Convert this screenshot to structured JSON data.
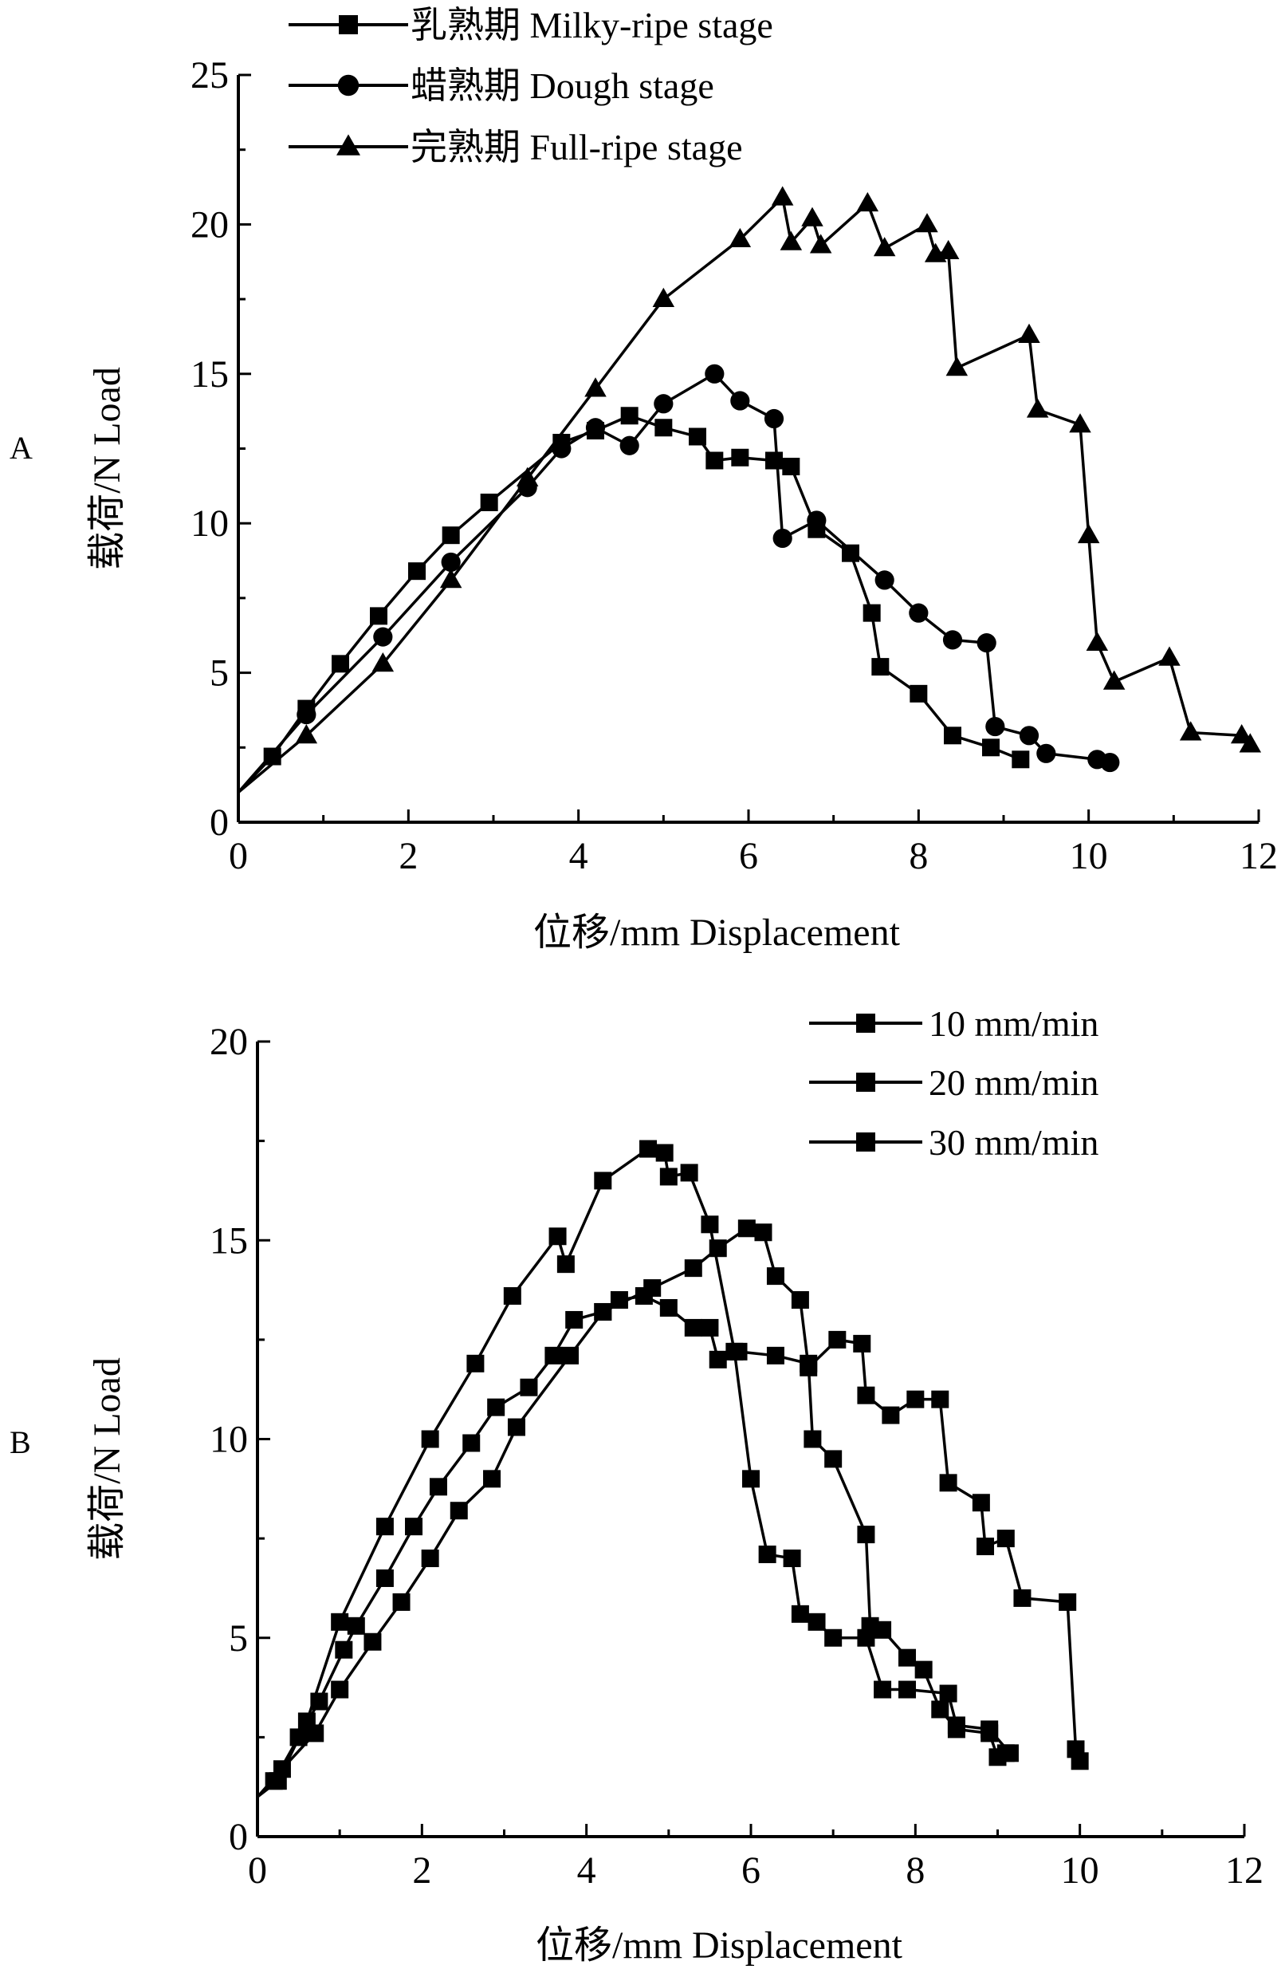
{
  "chart_data": [
    {
      "panel_label": "A",
      "type": "line",
      "xlabel": "位移/mm Displacement",
      "ylabel": "载荷/N Load",
      "xlim": [
        0,
        12
      ],
      "ylim": [
        0,
        25
      ],
      "xticks": [
        0,
        2,
        4,
        6,
        8,
        10,
        12
      ],
      "yticks": [
        0,
        5,
        10,
        15,
        20,
        25
      ],
      "grid": false,
      "legend_position": "top-left",
      "color": "#000000",
      "series": [
        {
          "name": "乳熟期 Milky-ripe stage",
          "marker": "square",
          "points": [
            [
              0,
              1
            ],
            [
              0.4,
              2.2
            ],
            [
              0.8,
              3.8
            ],
            [
              1.2,
              5.3
            ],
            [
              1.65,
              6.9
            ],
            [
              2.1,
              8.4
            ],
            [
              2.5,
              9.6
            ],
            [
              2.95,
              10.7
            ],
            [
              3.8,
              12.7
            ],
            [
              4.2,
              13.1
            ],
            [
              4.6,
              13.6
            ],
            [
              5.0,
              13.2
            ],
            [
              5.4,
              12.9
            ],
            [
              5.6,
              12.1
            ],
            [
              5.9,
              12.2
            ],
            [
              6.3,
              12.1
            ],
            [
              6.5,
              11.9
            ],
            [
              6.8,
              9.8
            ],
            [
              7.2,
              9.0
            ],
            [
              7.45,
              7.0
            ],
            [
              7.55,
              5.2
            ],
            [
              8.0,
              4.3
            ],
            [
              8.4,
              2.9
            ],
            [
              8.85,
              2.5
            ],
            [
              9.2,
              2.1
            ]
          ]
        },
        {
          "name": "蜡熟期 Dough stage",
          "marker": "circle",
          "points": [
            [
              0,
              1
            ],
            [
              0.8,
              3.6
            ],
            [
              1.7,
              6.2
            ],
            [
              2.5,
              8.7
            ],
            [
              3.4,
              11.2
            ],
            [
              3.8,
              12.5
            ],
            [
              4.2,
              13.2
            ],
            [
              4.6,
              12.6
            ],
            [
              5.0,
              14.0
            ],
            [
              5.6,
              15.0
            ],
            [
              5.9,
              14.1
            ],
            [
              6.3,
              13.5
            ],
            [
              6.4,
              9.5
            ],
            [
              6.8,
              10.1
            ],
            [
              7.6,
              8.1
            ],
            [
              8.0,
              7.0
            ],
            [
              8.4,
              6.1
            ],
            [
              8.8,
              6.0
            ],
            [
              8.9,
              3.2
            ],
            [
              9.3,
              2.9
            ],
            [
              9.5,
              2.3
            ],
            [
              10.1,
              2.1
            ],
            [
              10.25,
              2.0
            ]
          ]
        },
        {
          "name": "完熟期 Full-ripe stage",
          "marker": "triangle",
          "points": [
            [
              0,
              1
            ],
            [
              0.8,
              2.9
            ],
            [
              1.7,
              5.3
            ],
            [
              2.5,
              8.1
            ],
            [
              3.4,
              11.5
            ],
            [
              4.2,
              14.5
            ],
            [
              5.0,
              17.5
            ],
            [
              5.9,
              19.5
            ],
            [
              6.4,
              20.9
            ],
            [
              6.5,
              19.4
            ],
            [
              6.75,
              20.2
            ],
            [
              6.85,
              19.3
            ],
            [
              7.4,
              20.7
            ],
            [
              7.6,
              19.2
            ],
            [
              8.1,
              20.0
            ],
            [
              8.2,
              19.0
            ],
            [
              8.35,
              19.1
            ],
            [
              8.45,
              15.2
            ],
            [
              9.3,
              16.3
            ],
            [
              9.4,
              13.8
            ],
            [
              9.9,
              13.3
            ],
            [
              10.0,
              9.6
            ],
            [
              10.1,
              6.0
            ],
            [
              10.3,
              4.7
            ],
            [
              10.95,
              5.5
            ],
            [
              11.2,
              3.0
            ],
            [
              11.8,
              2.9
            ],
            [
              11.9,
              2.6
            ]
          ]
        }
      ]
    },
    {
      "panel_label": "B",
      "type": "line",
      "xlabel": "位移/mm Displacement",
      "ylabel": "载荷/N Load",
      "xlim": [
        0,
        12
      ],
      "ylim": [
        0,
        20
      ],
      "xticks": [
        0,
        2,
        4,
        6,
        8,
        10,
        12
      ],
      "yticks": [
        0,
        5,
        10,
        15,
        20
      ],
      "grid": false,
      "legend_position": "top-right",
      "color": "#000000",
      "series": [
        {
          "name": "10 mm/min",
          "marker": "square",
          "points": [
            [
              0,
              1
            ],
            [
              0.2,
              1.4
            ],
            [
              0.5,
              2.5
            ],
            [
              0.75,
              3.4
            ],
            [
              1.05,
              4.7
            ],
            [
              1.2,
              5.3
            ],
            [
              1.55,
              6.5
            ],
            [
              1.9,
              7.8
            ],
            [
              2.2,
              8.8
            ],
            [
              2.6,
              9.9
            ],
            [
              2.9,
              10.8
            ],
            [
              3.3,
              11.3
            ],
            [
              3.6,
              12.1
            ],
            [
              3.85,
              13.0
            ],
            [
              4.2,
              13.2
            ],
            [
              4.4,
              13.5
            ],
            [
              4.7,
              13.6
            ],
            [
              5.0,
              13.3
            ],
            [
              5.3,
              12.8
            ],
            [
              5.5,
              12.8
            ],
            [
              5.6,
              12.0
            ],
            [
              5.85,
              12.2
            ],
            [
              6.3,
              12.1
            ],
            [
              6.7,
              11.9
            ],
            [
              6.75,
              10.0
            ],
            [
              7.0,
              9.5
            ],
            [
              7.4,
              7.6
            ],
            [
              7.45,
              5.3
            ],
            [
              7.6,
              5.2
            ],
            [
              7.9,
              4.5
            ],
            [
              8.1,
              4.2
            ],
            [
              8.3,
              3.2
            ],
            [
              8.5,
              2.7
            ],
            [
              8.9,
              2.6
            ],
            [
              9.0,
              2.0
            ],
            [
              9.1,
              2.1
            ]
          ]
        },
        {
          "name": "20 mm/min",
          "marker": "square",
          "points": [
            [
              0,
              1
            ],
            [
              0.25,
              1.4
            ],
            [
              0.6,
              2.9
            ],
            [
              1.0,
              5.4
            ],
            [
              1.55,
              7.8
            ],
            [
              2.1,
              10.0
            ],
            [
              2.65,
              11.9
            ],
            [
              3.1,
              13.6
            ],
            [
              3.65,
              15.1
            ],
            [
              3.75,
              14.4
            ],
            [
              4.2,
              16.5
            ],
            [
              4.75,
              17.3
            ],
            [
              4.95,
              17.2
            ],
            [
              5.0,
              16.6
            ],
            [
              5.25,
              16.7
            ],
            [
              5.5,
              15.4
            ],
            [
              5.8,
              12.2
            ],
            [
              6.0,
              9.0
            ],
            [
              6.2,
              7.1
            ],
            [
              6.5,
              7.0
            ],
            [
              6.6,
              5.6
            ],
            [
              6.8,
              5.4
            ],
            [
              7.0,
              5.0
            ],
            [
              7.4,
              5.0
            ],
            [
              7.6,
              3.7
            ],
            [
              7.9,
              3.7
            ],
            [
              8.4,
              3.6
            ],
            [
              8.5,
              2.8
            ],
            [
              8.9,
              2.7
            ],
            [
              9.15,
              2.1
            ]
          ]
        },
        {
          "name": "30 mm/min",
          "marker": "square",
          "points": [
            [
              0,
              1
            ],
            [
              0.3,
              1.7
            ],
            [
              0.7,
              2.6
            ],
            [
              1.0,
              3.7
            ],
            [
              1.4,
              4.9
            ],
            [
              1.75,
              5.9
            ],
            [
              2.1,
              7.0
            ],
            [
              2.45,
              8.2
            ],
            [
              2.85,
              9.0
            ],
            [
              3.15,
              10.3
            ],
            [
              3.8,
              12.1
            ],
            [
              4.2,
              13.2
            ],
            [
              4.8,
              13.8
            ],
            [
              5.3,
              14.3
            ],
            [
              5.6,
              14.8
            ],
            [
              5.95,
              15.3
            ],
            [
              6.15,
              15.2
            ],
            [
              6.3,
              14.1
            ],
            [
              6.6,
              13.5
            ],
            [
              6.7,
              11.8
            ],
            [
              7.05,
              12.5
            ],
            [
              7.35,
              12.4
            ],
            [
              7.4,
              11.1
            ],
            [
              7.7,
              10.6
            ],
            [
              8.0,
              11.0
            ],
            [
              8.3,
              11.0
            ],
            [
              8.4,
              8.9
            ],
            [
              8.8,
              8.4
            ],
            [
              8.85,
              7.3
            ],
            [
              9.1,
              7.5
            ],
            [
              9.3,
              6.0
            ],
            [
              9.85,
              5.9
            ],
            [
              9.95,
              2.2
            ],
            [
              10.0,
              1.9
            ]
          ]
        }
      ]
    }
  ]
}
